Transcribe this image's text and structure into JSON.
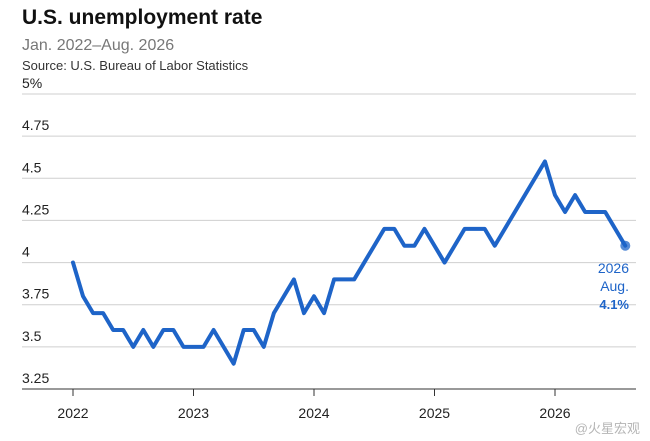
{
  "header": {
    "title": "U.S. unemployment rate",
    "subtitle": "Jan. 2022–Aug. 2026",
    "source": "Source: U.S. Bureau of Labor Statistics"
  },
  "watermark": "@火星宏观",
  "colors": {
    "line": "#1e64c8",
    "grid": "#cfcfcf"
  },
  "chart_data": {
    "type": "line",
    "title": "U.S. unemployment rate",
    "subtitle": "Jan. 2022–Aug. 2026",
    "ylim": [
      3.25,
      5
    ],
    "y_ticks": [
      {
        "value": 5,
        "label": "5%"
      },
      {
        "value": 4.75,
        "label": "4.75"
      },
      {
        "value": 4.5,
        "label": "4.5"
      },
      {
        "value": 4.25,
        "label": "4.25"
      },
      {
        "value": 4,
        "label": "4"
      },
      {
        "value": 3.75,
        "label": "3.75"
      },
      {
        "value": 3.5,
        "label": "3.5"
      },
      {
        "value": 3.25,
        "label": "3.25"
      }
    ],
    "x_ticks": [
      {
        "value": 2022,
        "label": "2022"
      },
      {
        "value": 2023,
        "label": "2023"
      },
      {
        "value": 2024,
        "label": "2024"
      },
      {
        "value": 2025,
        "label": "2025"
      },
      {
        "value": 2026,
        "label": "2026"
      }
    ],
    "grid": true,
    "series": [
      {
        "x": [
          "2022-01",
          "2022-02",
          "2022-03",
          "2022-04",
          "2022-05",
          "2022-06",
          "2022-07",
          "2022-08",
          "2022-09",
          "2022-10",
          "2022-11",
          "2022-12",
          "2023-01",
          "2023-02",
          "2023-03",
          "2023-04",
          "2023-05",
          "2023-06",
          "2023-07",
          "2023-08",
          "2023-09",
          "2023-10",
          "2023-11",
          "2023-12",
          "2024-01",
          "2024-02",
          "2024-03",
          "2024-04",
          "2024-05",
          "2024-06",
          "2024-07",
          "2024-08",
          "2024-09",
          "2024-10",
          "2024-11",
          "2024-12",
          "2025-01",
          "2025-02",
          "2025-03",
          "2025-04",
          "2025-05",
          "2025-06",
          "2025-07",
          "2025-08",
          "2025-09",
          "2025-10",
          "2025-11",
          "2025-12",
          "2026-01",
          "2026-02",
          "2026-03",
          "2026-04",
          "2026-05",
          "2026-06",
          "2026-07",
          "2026-08"
        ],
        "values": [
          4.0,
          3.8,
          3.7,
          3.7,
          3.6,
          3.6,
          3.5,
          3.6,
          3.5,
          3.6,
          3.6,
          3.5,
          3.5,
          3.5,
          3.6,
          3.5,
          3.4,
          3.6,
          3.6,
          3.5,
          3.7,
          3.8,
          3.9,
          3.7,
          3.8,
          3.7,
          3.9,
          3.9,
          3.9,
          4.0,
          4.1,
          4.2,
          4.2,
          4.1,
          4.1,
          4.2,
          4.1,
          4.0,
          4.1,
          4.2,
          4.2,
          4.2,
          4.1,
          4.2,
          4.3,
          4.4,
          4.5,
          4.6,
          4.4,
          4.3,
          4.4,
          4.3,
          4.3,
          4.3,
          4.2,
          4.1
        ]
      }
    ],
    "end_annotation": {
      "year": "2026",
      "month": "Aug.",
      "value": "4.1%"
    }
  }
}
